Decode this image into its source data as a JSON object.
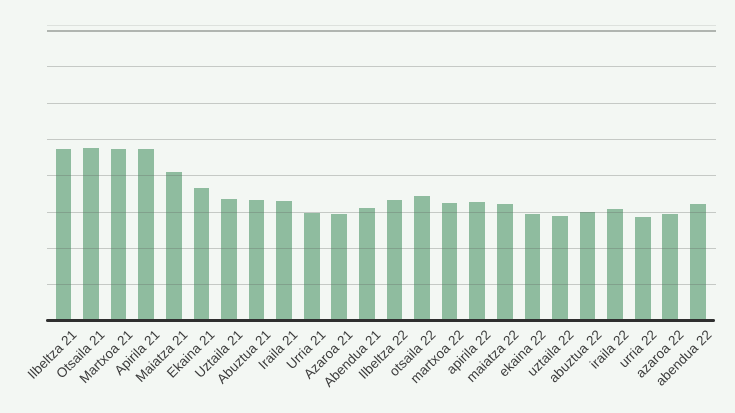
{
  "page": {
    "background_color": "#f3f7f3"
  },
  "chart_data": {
    "type": "bar",
    "title": "",
    "categories": [
      "Ilbeltza 21",
      "Otsaila 21",
      "Martxoa 21",
      "Apirila 21",
      "Maiatza 21",
      "Ekaina 21",
      "Uztaila 21",
      "Abuztua 21",
      "Iraila 21",
      "Urria 21",
      "Azaroa 21",
      "Abendua 21",
      "Ilbeltza 22",
      "otsaila 22",
      "martxoa 22",
      "apirila 22",
      "maiatza 22",
      "ekaina 22",
      "uztaila 22",
      "abuztua 22",
      "iraila 22",
      "urria 22",
      "azaroa 22",
      "abendua 22"
    ],
    "values": [
      4.71,
      4.75,
      4.72,
      4.72,
      4.08,
      3.65,
      3.34,
      3.32,
      3.28,
      2.95,
      2.93,
      3.11,
      3.32,
      3.44,
      3.24,
      3.26,
      3.2,
      2.93,
      2.88,
      2.98,
      3.07,
      2.86,
      2.93,
      3.21
    ],
    "value_units": "gridline intervals (no y-axis tick labels are visible; 1 unit = one horizontal gridline spacing)",
    "xlabel": "",
    "ylabel": "",
    "ylim": [
      0,
      8
    ],
    "gridlines": "horizontal, 8 intervals from axis to top line",
    "y_tick_labels_visible": false,
    "legend": "none",
    "x_label_rotation_degrees": -45
  },
  "style": {
    "bar_color": "#8fbc9f",
    "background_color": "#f3f7f3",
    "gridline_color": "rgba(100,105,100,0.32)",
    "top_gridline_color": "rgba(95,100,95,0.45)",
    "faint_top_line_color": "rgba(120,125,120,0.18)",
    "axis_line_color": "#2f2f2f",
    "label_color": "#3b3b3b"
  }
}
